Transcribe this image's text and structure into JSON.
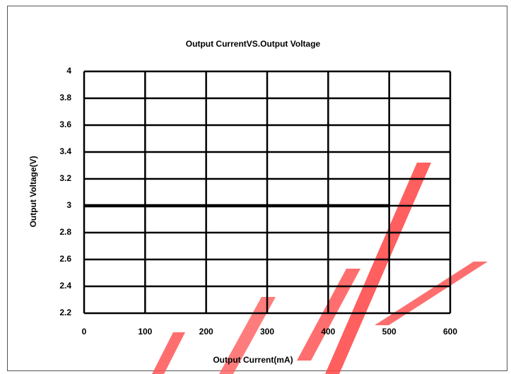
{
  "chart_data": {
    "type": "line",
    "title": "Output CurrentVS.Output Voltage",
    "x_label": "Output Current(mA)",
    "y_label": "Output Voltage(V)",
    "x": [
      0,
      100,
      200,
      300,
      400,
      500
    ],
    "series": [
      {
        "name": "Output Voltage",
        "color": "#000000",
        "values": [
          3,
          3,
          3,
          3,
          3,
          3
        ]
      }
    ],
    "xlim": [
      0,
      600
    ],
    "xticks": [
      0,
      100,
      200,
      300,
      400,
      500,
      600
    ],
    "ylim": [
      2.2,
      4
    ],
    "yticks": [
      2.2,
      2.4,
      2.6,
      2.8,
      3,
      3.2,
      3.4,
      3.6,
      3.8,
      4
    ],
    "grid": true
  }
}
